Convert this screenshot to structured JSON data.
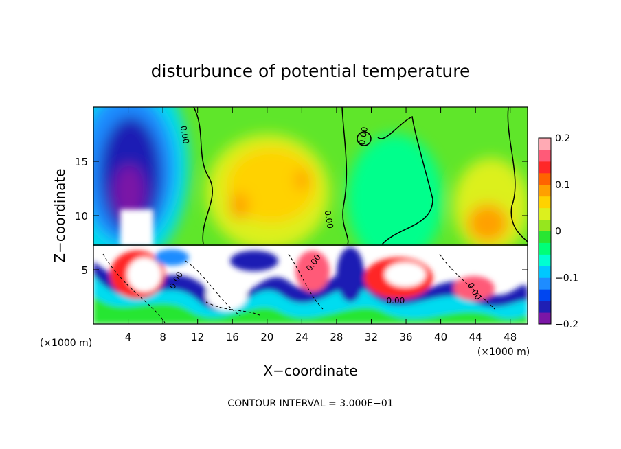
{
  "chart_data": {
    "type": "heatmap",
    "title": "disturbunce of potential temperature",
    "xlabel": "X−coordinate",
    "ylabel": "Z−coordinate",
    "x_unit_left": "(×1000 m)",
    "x_unit_right": "(×1000 m)",
    "footer": "CONTOUR INTERVAL = 3.000E−01",
    "xlim": [
      0,
      50
    ],
    "ylim": [
      0,
      20
    ],
    "xticks": [
      4,
      8,
      12,
      16,
      20,
      24,
      28,
      32,
      36,
      40,
      44,
      48
    ],
    "xtick_labels": [
      "4",
      "8",
      "12",
      "16",
      "20",
      "24",
      "28",
      "32",
      "36",
      "40",
      "44",
      "48"
    ],
    "yticks": [
      5,
      10,
      15
    ],
    "ytick_labels": [
      "5",
      "10",
      "15"
    ],
    "colorbar": {
      "range": [
        -0.2,
        0.2
      ],
      "ticks": [
        0.2,
        0.1,
        0,
        -0.1,
        -0.2
      ],
      "tick_labels": [
        "0.2",
        "0.1",
        "0",
        "−0.1",
        "−0.2"
      ],
      "colors": [
        "#7b16a6",
        "#1f1fb4",
        "#0046f0",
        "#1e8cff",
        "#00c8ff",
        "#00ffd2",
        "#00ff78",
        "#28e632",
        "#96e61e",
        "#dcf01e",
        "#ffd200",
        "#ffa000",
        "#ff6400",
        "#ff2828",
        "#ff5a78",
        "#ffaab4"
      ]
    },
    "contour_labels": [
      {
        "text": "0.00",
        "x": 10.2,
        "z": 17.4,
        "angle": 80
      },
      {
        "text": "0.00",
        "x": 26.8,
        "z": 9.6,
        "angle": 80
      },
      {
        "text": "0.00",
        "x": 31.4,
        "z": 17.3,
        "angle": -80
      },
      {
        "text": "0.00",
        "x": 9.8,
        "z": 3.9,
        "angle": -60
      },
      {
        "text": "0.00",
        "x": 25.6,
        "z": 5.5,
        "angle": -55
      },
      {
        "text": "0.00",
        "x": 34.8,
        "z": 1.9,
        "angle": 0
      },
      {
        "text": "0.00",
        "x": 43.6,
        "z": 2.9,
        "angle": 60
      }
    ],
    "anomalies": [
      {
        "x": 3.8,
        "z": 13.0,
        "value": -0.2,
        "rx": 2.6,
        "rz": 5.5
      },
      {
        "x": 3.0,
        "z": 16.0,
        "value": -0.12,
        "rx": 4.0,
        "rz": 4.0
      },
      {
        "x": 18.5,
        "z": 10.8,
        "value": 0.13,
        "rx": 4.0,
        "rz": 3.5
      },
      {
        "x": 22.0,
        "z": 12.5,
        "value": 0.1,
        "rx": 4.0,
        "rz": 5.5
      },
      {
        "x": 44.5,
        "z": 9.5,
        "value": 0.14,
        "rx": 2.0,
        "rz": 2.5
      },
      {
        "x": 33.0,
        "z": 13.5,
        "value": -0.05,
        "rx": 3.5,
        "rz": 3.5
      },
      {
        "x": 35.0,
        "z": 4.2,
        "value": 0.2,
        "rx": 3.0,
        "rz": 2.0
      },
      {
        "x": 6.5,
        "z": 3.5,
        "value": 0.2,
        "rx": 3.5,
        "rz": 3.0
      },
      {
        "x": 20.0,
        "z": 4.5,
        "value": -0.15,
        "rx": 3.0,
        "rz": 2.0
      }
    ]
  }
}
